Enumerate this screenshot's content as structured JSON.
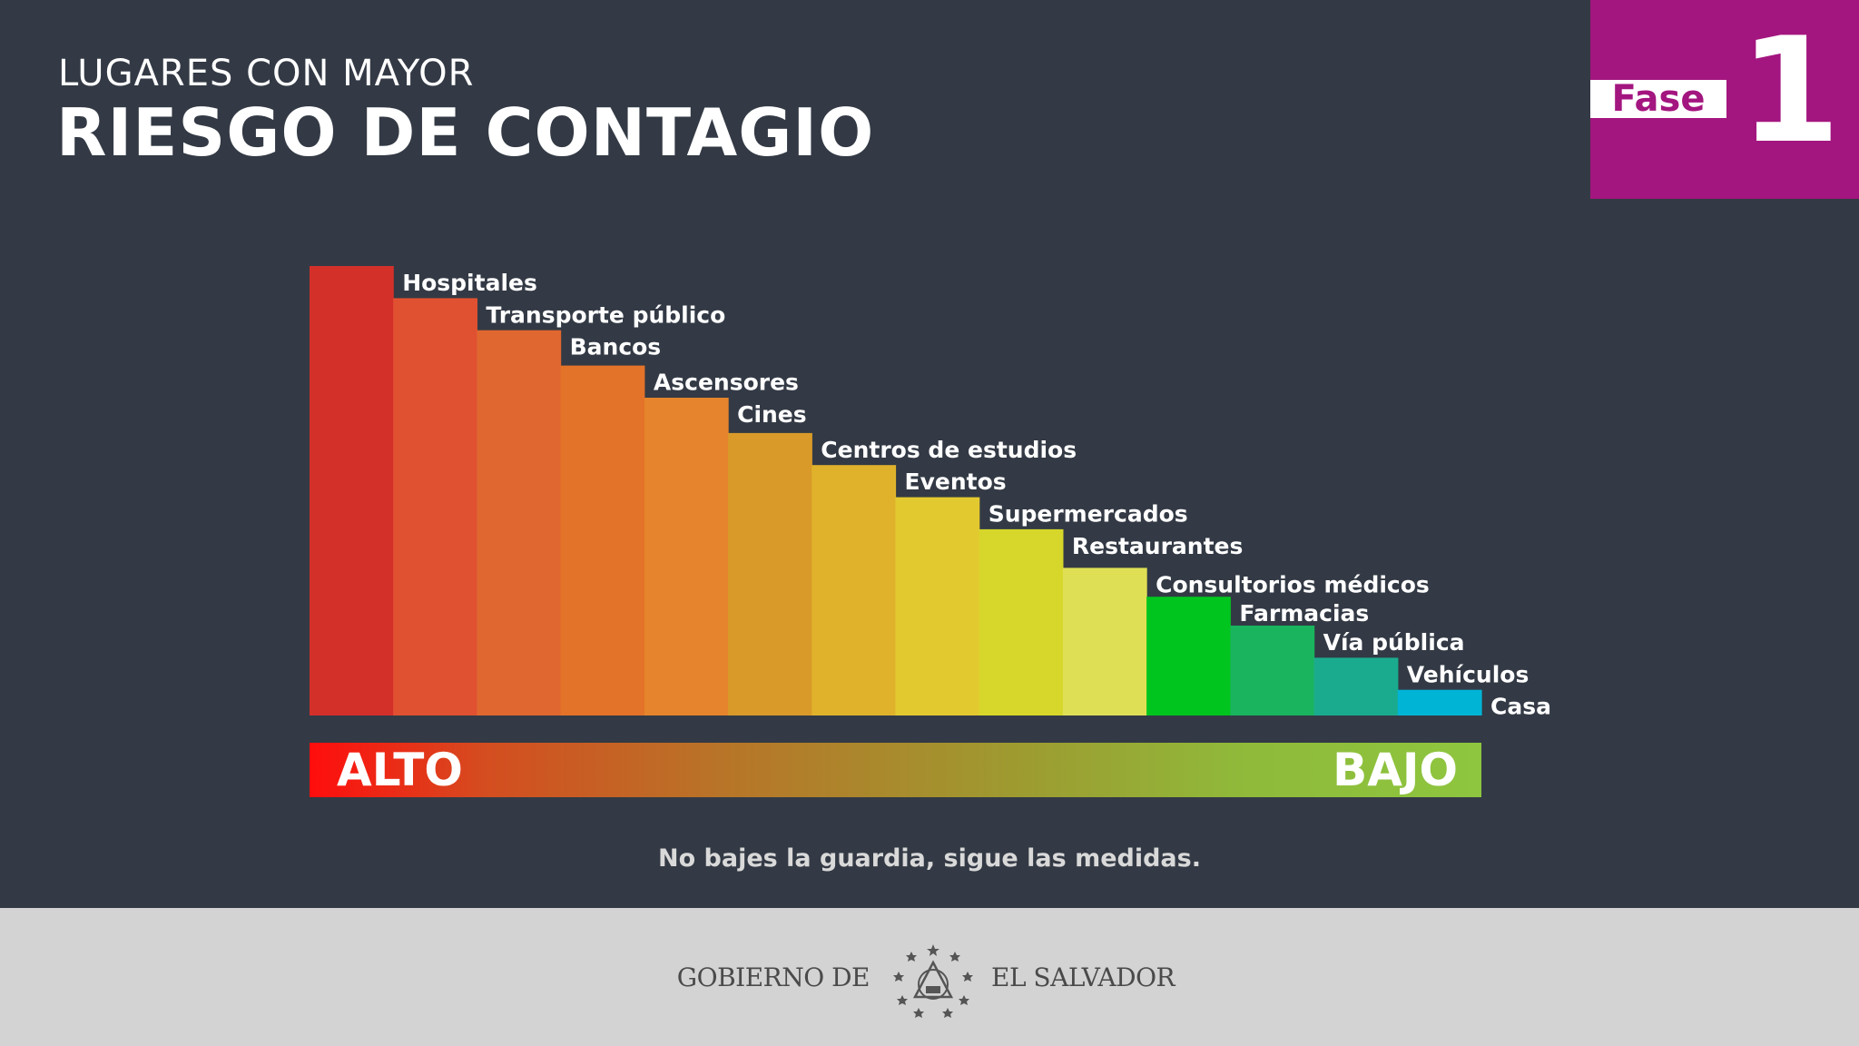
{
  "header": {
    "subtitle": "LUGARES CON MAYOR",
    "title": "RIESGO DE CONTAGIO"
  },
  "phase": {
    "word": "Fase",
    "number": "1"
  },
  "chart_data": {
    "type": "bar",
    "categories": [
      "Hospitales",
      "Transporte público",
      "Bancos",
      "Ascensores",
      "Cines",
      "Centros de estudios",
      "Eventos",
      "Supermercados",
      "Restaurantes",
      "Consultorios médicos",
      "Farmacias",
      "Vía pública",
      "Vehículos",
      "Casa"
    ],
    "values": [
      14,
      13,
      12,
      10.9,
      9.9,
      8.8,
      7.8,
      6.8,
      5.8,
      4.6,
      3.7,
      2.8,
      1.8,
      0.8
    ],
    "colors": [
      "#d4302a",
      "#e05131",
      "#e0672f",
      "#e37329",
      "#e5842c",
      "#d99a29",
      "#e0b22c",
      "#e3c930",
      "#d6d72a",
      "#dfdf55",
      "#00c51e",
      "#1ab45e",
      "#1aab8f",
      "#00b4d6"
    ],
    "title": "",
    "xlabel": "",
    "ylabel": "",
    "ylim": [
      0,
      14
    ],
    "grid": false,
    "legend": "none"
  },
  "scale": {
    "high": "ALTO",
    "low": "BAJO"
  },
  "footer": {
    "note": "No bajes la guardia, sigue las medidas.",
    "gov_left": "GOBIERNO DE",
    "gov_right": "EL SALVADOR"
  }
}
